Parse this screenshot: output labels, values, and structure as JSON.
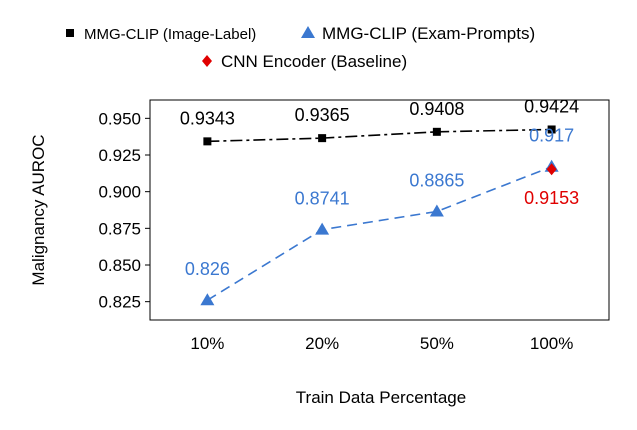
{
  "chart_data": {
    "type": "line",
    "categories": [
      "10%",
      "20%",
      "50%",
      "100%"
    ],
    "series": [
      {
        "name": "MMG-CLIP (Image-Label)",
        "values": [
          0.9343,
          0.9365,
          0.9408,
          0.9424
        ],
        "labels": [
          "0.9343",
          "0.9365",
          "0.9408",
          "0.9424"
        ],
        "color": "#000000",
        "marker": "square",
        "line": "dash-dot"
      },
      {
        "name": "MMG-CLIP (Exam-Prompts)",
        "values": [
          0.826,
          0.8741,
          0.8865,
          0.917
        ],
        "labels": [
          "0.826",
          "0.8741",
          "0.8865",
          "0.917"
        ],
        "color": "#3b78d0",
        "marker": "triangle",
        "line": "dashed"
      },
      {
        "name": "CNN Encoder (Baseline)",
        "x": [
          "100%"
        ],
        "values": [
          0.9153
        ],
        "labels": [
          "0.9153"
        ],
        "color": "#e00000",
        "marker": "diamond",
        "line": "none"
      }
    ],
    "xlabel": "Train Data Percentage",
    "ylabel": "Malignancy AUROC",
    "yticks": [
      "0.825",
      "0.850",
      "0.875",
      "0.900",
      "0.925",
      "0.950"
    ],
    "ylim": [
      0.8125,
      0.9625
    ],
    "grid": false,
    "legend_position": "top"
  }
}
